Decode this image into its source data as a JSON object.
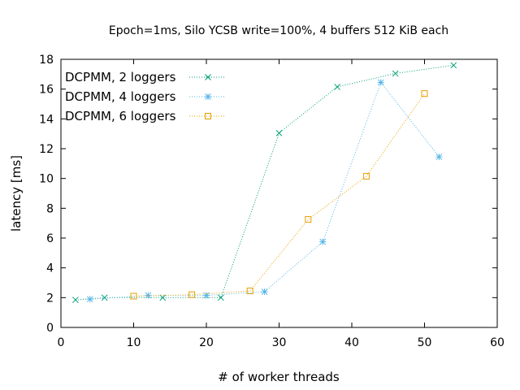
{
  "chart_data": {
    "type": "line",
    "title": "Epoch=1ms, Silo YCSB write=100%, 4 buffers 512 KiB each",
    "xlabel": "# of worker threads",
    "ylabel": "latency [ms]",
    "xlim": [
      0,
      60
    ],
    "ylim": [
      0,
      18
    ],
    "xticks": [
      0,
      10,
      20,
      30,
      40,
      50,
      60
    ],
    "yticks": [
      0,
      2,
      4,
      6,
      8,
      10,
      12,
      14,
      16,
      18
    ],
    "grid": false,
    "legend_position": "top-left",
    "series": [
      {
        "name": "DCPMM, 2 loggers",
        "color": "#009e73",
        "marker": "x",
        "x": [
          2,
          6,
          14,
          22,
          30,
          38,
          46,
          54
        ],
        "y": [
          1.85,
          2.0,
          2.0,
          2.0,
          13.05,
          16.15,
          17.05,
          17.6
        ]
      },
      {
        "name": "DCPMM, 4 loggers",
        "color": "#56b4e9",
        "marker": "star",
        "x": [
          4,
          12,
          20,
          28,
          36,
          44,
          52
        ],
        "y": [
          1.9,
          2.15,
          2.15,
          2.4,
          5.75,
          16.45,
          11.45
        ]
      },
      {
        "name": "DCPMM, 6 loggers",
        "color": "#e69f00",
        "marker": "square",
        "x": [
          10,
          18,
          26,
          34,
          42,
          50
        ],
        "y": [
          2.1,
          2.2,
          2.45,
          7.25,
          10.15,
          15.7
        ]
      }
    ]
  }
}
